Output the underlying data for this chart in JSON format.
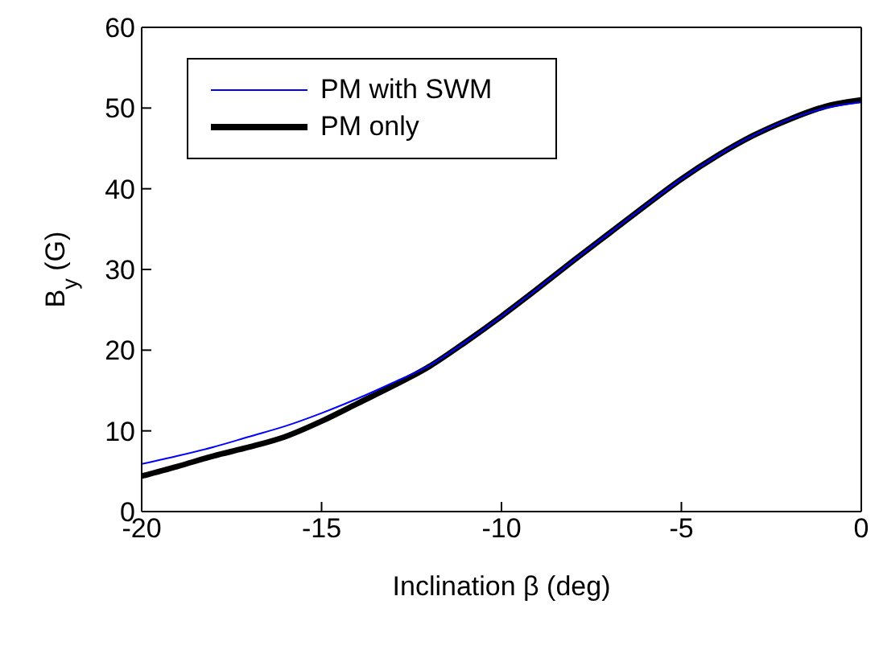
{
  "chart_data": {
    "type": "line",
    "xlabel": "Inclination β (deg)",
    "ylabel": "B$_{y}$ (G)",
    "x": [
      -20,
      -19,
      -18,
      -17,
      -16,
      -15,
      -14,
      -13,
      -12,
      -11,
      -10,
      -9,
      -8,
      -7,
      -6,
      -5,
      -4,
      -3,
      -2,
      -1,
      0
    ],
    "series": [
      {
        "name": "PM with SWM",
        "color": "#0000ff",
        "values": [
          5.9,
          6.9,
          8.0,
          9.3,
          10.6,
          12.2,
          14.0,
          16.0,
          18.1,
          21.0,
          24.2,
          27.6,
          31.1,
          34.5,
          37.9,
          41.2,
          44.1,
          46.6,
          48.6,
          50.0,
          50.7
        ]
      },
      {
        "name": "PM only",
        "color": "#000000",
        "values": [
          4.4,
          5.6,
          6.9,
          8.0,
          9.3,
          11.2,
          13.4,
          15.6,
          18.0,
          21.0,
          24.2,
          27.6,
          31.1,
          34.5,
          37.9,
          41.2,
          44.1,
          46.6,
          48.6,
          50.2,
          51.0
        ]
      }
    ],
    "xlim": [
      -20,
      0
    ],
    "xticks": [
      -20,
      -15,
      -10,
      -5,
      0
    ],
    "ylim": [
      0,
      60
    ],
    "yticks": [
      0,
      10,
      20,
      30,
      40,
      50,
      60
    ],
    "grid": false,
    "legend": "top left",
    "marker": "none",
    "line_style": "solid"
  }
}
